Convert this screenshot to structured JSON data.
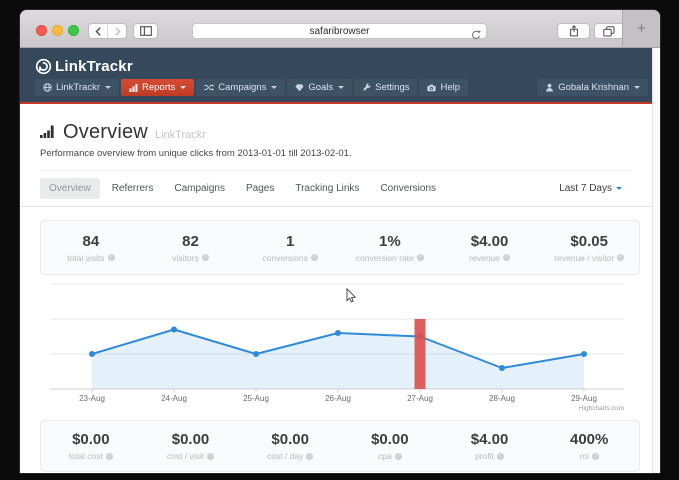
{
  "browser": {
    "url_text": "safaribrowser",
    "new_tab_glyph": "+"
  },
  "navbar": {
    "brand": "LinkTrackr",
    "items": [
      {
        "label": "LinkTrackr",
        "icon": "globe-icon",
        "caret": true,
        "active": false
      },
      {
        "label": "Reports",
        "icon": "bar-chart-icon",
        "caret": true,
        "active": true
      },
      {
        "label": "Campaigns",
        "icon": "shuffle-icon",
        "caret": true,
        "active": false
      },
      {
        "label": "Goals",
        "icon": "diamond-icon",
        "caret": true,
        "active": false
      },
      {
        "label": "Settings",
        "icon": "wrench-icon",
        "caret": false,
        "active": false
      },
      {
        "label": "Help",
        "icon": "camera-icon",
        "caret": false,
        "active": false
      }
    ],
    "account": {
      "label": "Gobala Krishnan",
      "icon": "user-icon"
    }
  },
  "page": {
    "title": "Overview",
    "title_suffix": "LinkTrackr",
    "subtitle": "Performance overview from unique clicks from 2013-01-01 till 2013-02-01."
  },
  "tabs": [
    {
      "label": "Overview",
      "active": true
    },
    {
      "label": "Referrers",
      "active": false
    },
    {
      "label": "Campaigns",
      "active": false
    },
    {
      "label": "Pages",
      "active": false
    },
    {
      "label": "Tracking Links",
      "active": false
    },
    {
      "label": "Conversions",
      "active": false
    }
  ],
  "date_range": "Last 7 Days",
  "stats_top": [
    {
      "value": "84",
      "label": "total visits"
    },
    {
      "value": "82",
      "label": "visitors"
    },
    {
      "value": "1",
      "label": "conversions"
    },
    {
      "value": "1%",
      "label": "conversion rate"
    },
    {
      "value": "$4.00",
      "label": "revenue"
    },
    {
      "value": "$0.05",
      "label": "revenue / visitor"
    }
  ],
  "stats_bottom": [
    {
      "value": "$0.00",
      "label": "total cost"
    },
    {
      "value": "$0.00",
      "label": "cost / visit"
    },
    {
      "value": "$0.00",
      "label": "cost / day"
    },
    {
      "value": "$0.00",
      "label": "cpa"
    },
    {
      "value": "$4.00",
      "label": "profit"
    },
    {
      "value": "400%",
      "label": "roi"
    }
  ],
  "chart_data": {
    "type": "area",
    "categories": [
      "23-Aug",
      "24-Aug",
      "25-Aug",
      "26-Aug",
      "27-Aug",
      "28-Aug",
      "29-Aug"
    ],
    "series": [
      {
        "name": "visits",
        "type": "area",
        "color": "#2f8ad9",
        "fill_opacity": 0.13,
        "values": [
          10,
          17,
          10,
          16,
          15,
          6,
          10
        ]
      },
      {
        "name": "highlight",
        "type": "bar",
        "color": "#d9534f",
        "data": [
          {
            "category": "27-Aug",
            "value": 20
          }
        ]
      }
    ],
    "ylim": [
      0,
      35
    ],
    "grid_step": 10,
    "grid_on": true,
    "legend": false,
    "title": "",
    "xlabel": "",
    "ylabel": "",
    "credits": "Highcharts.com"
  },
  "colors": {
    "navbar_bg": "#36495c",
    "nav_item_bg": "#3e5266",
    "accent_red": "#c23a27",
    "chart_blue": "#2f8ad9",
    "bar_red": "#d9534f",
    "traffic_red": "#f55c51",
    "traffic_yellow": "#f6bd3e",
    "traffic_green": "#3ec846"
  }
}
